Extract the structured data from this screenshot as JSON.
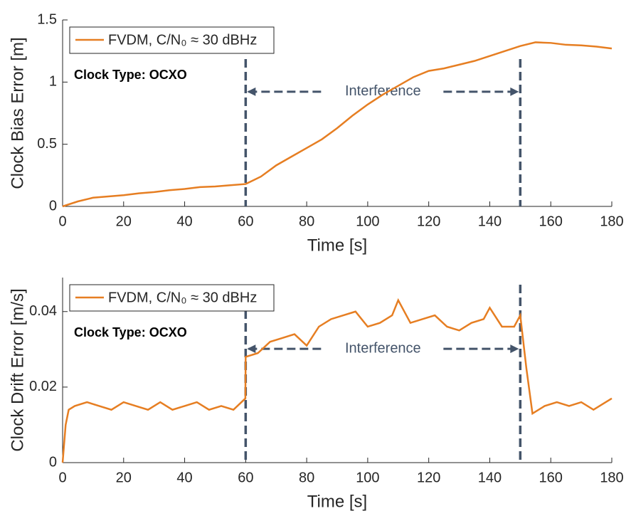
{
  "chart_data": [
    {
      "type": "line",
      "xlabel": "Time [s]",
      "ylabel": "Clock Bias Error [m]",
      "xlim": [
        0,
        180
      ],
      "xticks": [
        0,
        20,
        40,
        60,
        80,
        100,
        120,
        140,
        160,
        180
      ],
      "ylim": [
        0,
        1.5
      ],
      "yticks": [
        0,
        0.5,
        1,
        1.5
      ],
      "x": [
        0,
        5,
        10,
        15,
        20,
        25,
        30,
        35,
        40,
        45,
        50,
        55,
        60,
        65,
        70,
        75,
        80,
        85,
        90,
        95,
        100,
        105,
        110,
        115,
        120,
        125,
        130,
        135,
        140,
        145,
        150,
        155,
        160,
        165,
        170,
        175,
        180
      ],
      "series": [
        {
          "name": "FVDM, C/N₀ ≈ 30 dBHz",
          "color": "#e67e22",
          "values": [
            0,
            0.04,
            0.07,
            0.08,
            0.09,
            0.105,
            0.115,
            0.13,
            0.14,
            0.155,
            0.16,
            0.17,
            0.18,
            0.24,
            0.33,
            0.4,
            0.47,
            0.54,
            0.63,
            0.73,
            0.82,
            0.9,
            0.97,
            1.04,
            1.09,
            1.11,
            1.14,
            1.17,
            1.21,
            1.25,
            1.29,
            1.32,
            1.315,
            1.3,
            1.295,
            1.285,
            1.27
          ]
        }
      ],
      "legend": "upper left",
      "annotation": "Clock Type: OCXO",
      "interval_label": "Interference",
      "interval": [
        60,
        150
      ]
    },
    {
      "type": "line",
      "xlabel": "Time [s]",
      "ylabel": "Clock Drift Error [m/s]",
      "xlim": [
        0,
        180
      ],
      "xticks": [
        0,
        20,
        40,
        60,
        80,
        100,
        120,
        140,
        160,
        180
      ],
      "ylim": [
        0,
        0.049
      ],
      "yticks": [
        0,
        0.02,
        0.04
      ],
      "x": [
        0,
        1,
        2,
        4,
        8,
        12,
        16,
        20,
        24,
        28,
        32,
        36,
        40,
        44,
        48,
        52,
        56,
        59.9,
        60,
        64,
        68,
        72,
        76,
        80,
        84,
        88,
        92,
        96,
        100,
        104,
        108,
        110,
        114,
        118,
        122,
        126,
        130,
        134,
        138,
        140,
        144,
        148,
        150,
        152,
        154,
        158,
        162,
        166,
        170,
        174,
        178,
        180
      ],
      "series": [
        {
          "name": "FVDM, C/N₀ ≈ 30 dBHz",
          "color": "#e67e22",
          "values": [
            0,
            0.01,
            0.014,
            0.015,
            0.016,
            0.015,
            0.014,
            0.016,
            0.015,
            0.014,
            0.016,
            0.014,
            0.015,
            0.016,
            0.014,
            0.015,
            0.014,
            0.017,
            0.028,
            0.029,
            0.032,
            0.033,
            0.034,
            0.031,
            0.036,
            0.038,
            0.039,
            0.04,
            0.036,
            0.037,
            0.039,
            0.043,
            0.037,
            0.038,
            0.039,
            0.036,
            0.035,
            0.037,
            0.038,
            0.041,
            0.036,
            0.036,
            0.039,
            0.025,
            0.013,
            0.015,
            0.016,
            0.015,
            0.016,
            0.014,
            0.016,
            0.017
          ]
        }
      ],
      "legend": "upper left",
      "annotation": "Clock Type: OCXO",
      "interval_label": "Interference",
      "interval": [
        60,
        150
      ]
    }
  ]
}
